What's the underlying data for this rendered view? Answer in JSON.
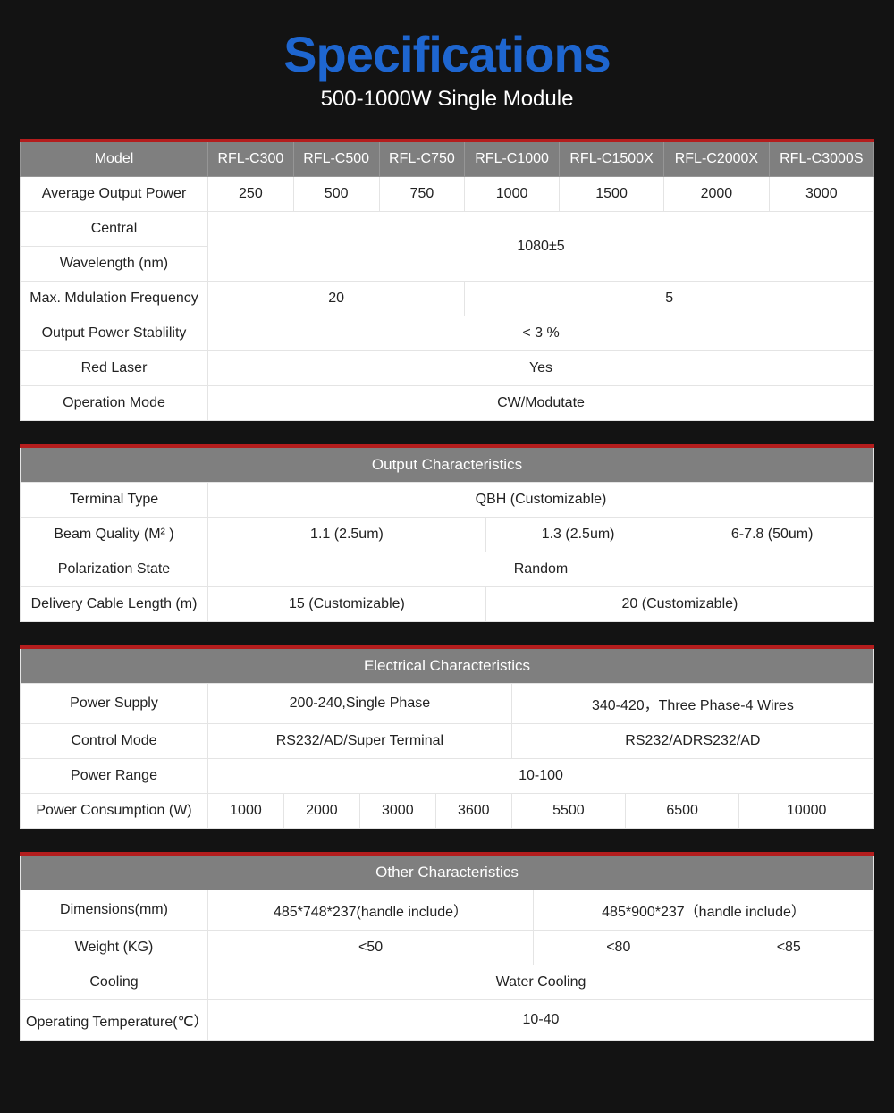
{
  "title": "Specifications",
  "subtitle": "500-1000W Single Module",
  "colors": {
    "page_bg": "#131313",
    "title_color": "#1e66d0",
    "subtitle_color": "#ffffff",
    "table_bg": "#ffffff",
    "header_bg": "#7f7f7f",
    "header_fg": "#ffffff",
    "accent_border": "#b41d1d",
    "cell_border": "#e4e4e4",
    "text_color": "#222222"
  },
  "typography": {
    "title_fontsize": 56,
    "title_weight": 800,
    "subtitle_fontsize": 24,
    "cell_fontsize": 16
  },
  "columns": {
    "model_label": "Model",
    "models": [
      "RFL-C300",
      "RFL-C500",
      "RFL-C750",
      "RFL-C1000",
      "RFL-C1500X",
      "RFL-C2000X",
      "RFL-C3000S"
    ]
  },
  "table1": {
    "rows": {
      "avg_power": {
        "label": "Average Output Power",
        "values": [
          "250",
          "500",
          "750",
          "1000",
          "1500",
          "2000",
          "3000"
        ]
      },
      "central": {
        "label": "Central"
      },
      "wavelength": {
        "label": "Wavelength (nm)",
        "merged_value": "1080±5"
      },
      "mod_freq": {
        "label": "Max. Mdulation Frequency",
        "left": "20",
        "right": "5"
      },
      "stability": {
        "label": "Output Power Stablility",
        "merged_value": "< 3 %"
      },
      "red_laser": {
        "label": "Red Laser",
        "merged_value": "Yes"
      },
      "op_mode": {
        "label": "Operation Mode",
        "merged_value": "CW/Modutate"
      }
    }
  },
  "table2": {
    "section": "Output Characteristics",
    "rows": {
      "terminal": {
        "label": "Terminal Type",
        "merged_value": "QBH (Customizable)"
      },
      "beam": {
        "label": "Beam Quality (M² )",
        "a": "1.1 (2.5um)",
        "b": "1.3 (2.5um)",
        "c": "6-7.8 (50um)"
      },
      "polar": {
        "label": "Polarization State",
        "merged_value": "Random"
      },
      "cable": {
        "label": "Delivery Cable Length (m)",
        "left": "15 (Customizable)",
        "right": "20 (Customizable)"
      }
    }
  },
  "table3": {
    "section": "Electrical Characteristics",
    "rows": {
      "supply": {
        "label": "Power Supply",
        "left": "200-240,Single Phase",
        "right": "340-420，Three Phase-4 Wires"
      },
      "control": {
        "label": "Control Mode",
        "left": "RS232/AD/Super Terminal",
        "right": "RS232/ADRS232/AD"
      },
      "range": {
        "label": "Power Range",
        "merged_value": "10-100"
      },
      "consumption": {
        "label": "Power Consumption (W)",
        "values": [
          "1000",
          "2000",
          "3000",
          "3600",
          "5500",
          "6500",
          "10000"
        ]
      }
    }
  },
  "table4": {
    "section": "Other Characteristics",
    "rows": {
      "dims": {
        "label": "Dimensions(mm)",
        "left": "485*748*237(handle include）",
        "right": "485*900*237（handle include）"
      },
      "weight": {
        "label": "Weight (KG)",
        "a": "<50",
        "b": "<80",
        "c": "<85"
      },
      "cooling": {
        "label": "Cooling",
        "merged_value": "Water Cooling"
      },
      "temp": {
        "label": "Operating Temperature(℃）",
        "merged_value": "10-40"
      }
    }
  }
}
